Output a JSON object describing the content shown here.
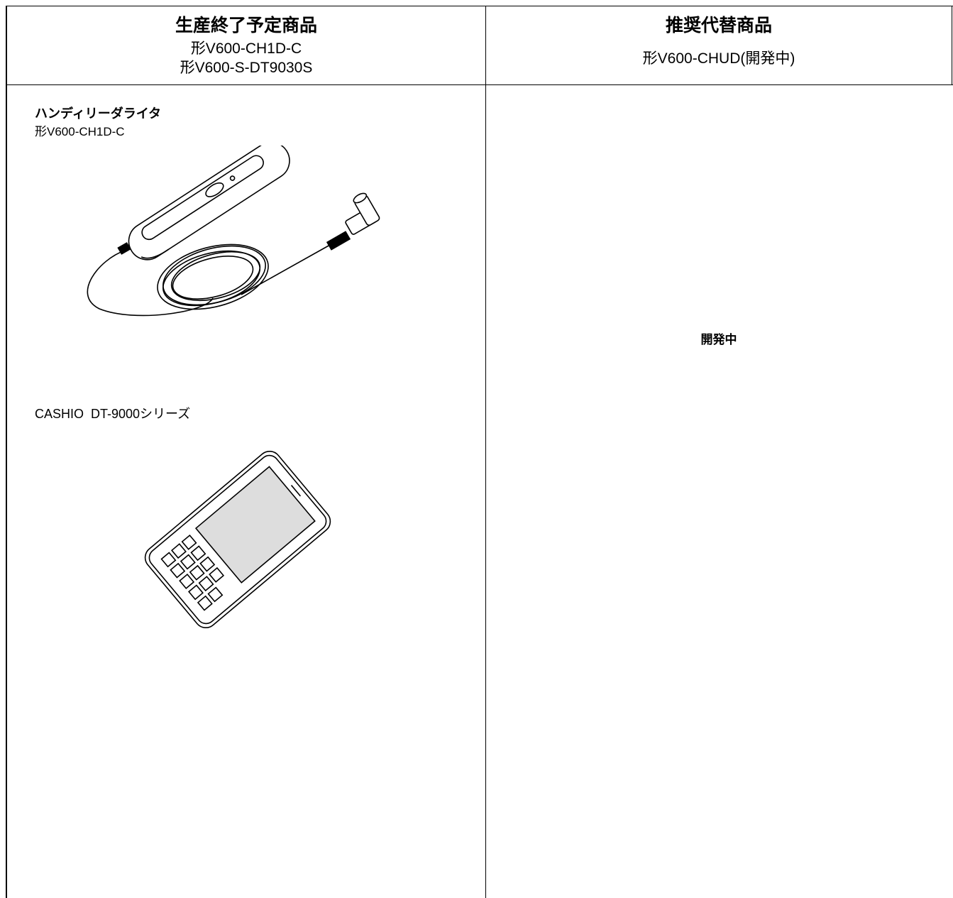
{
  "table": {
    "header": {
      "left": {
        "title": "生産終了予定商品",
        "lines": [
          "形V600-CH1D-C",
          "形V600-S-DT9030S"
        ]
      },
      "right": {
        "title": "推奨代替商品",
        "lines": [
          "形V600-CHUD(開発中)"
        ]
      }
    },
    "body": {
      "left": {
        "items": [
          {
            "title": "ハンディリーダライタ",
            "model": "形V600-CH1D-C"
          },
          {
            "title": "CASHIO  DT-9000シリーズ"
          }
        ]
      },
      "right": {
        "text": "開発中"
      }
    }
  }
}
